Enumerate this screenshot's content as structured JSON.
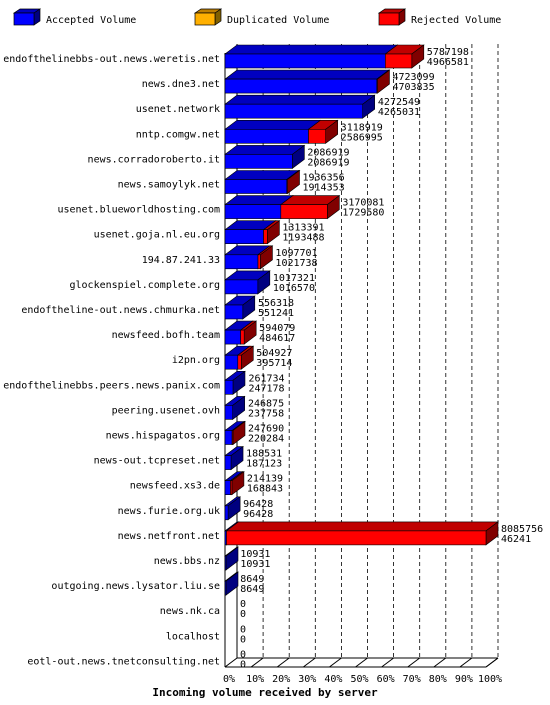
{
  "chart_data": {
    "type": "bar",
    "orientation": "horizontal",
    "stacked": true,
    "xlabel": "Incoming volume received by server",
    "x_ticks": [
      "0%",
      "10%",
      "20%",
      "30%",
      "40%",
      "50%",
      "60%",
      "70%",
      "80%",
      "90%",
      "100%"
    ],
    "xlim": [
      0,
      8085756
    ],
    "grid": true,
    "legend_position": "top",
    "legend": [
      {
        "name": "Accepted Volume",
        "color": "#0000ff"
      },
      {
        "name": "Duplicated Volume",
        "color": "#ffb000"
      },
      {
        "name": "Rejected Volume",
        "color": "#ff0000"
      }
    ],
    "categories": [
      "endofthelinebbs-out.news.weretis.net",
      "news.dne3.net",
      "usenet.network",
      "nntp.comgw.net",
      "news.corradoroberto.it",
      "news.samoylyk.net",
      "usenet.blueworldhosting.com",
      "usenet.goja.nl.eu.org",
      "194.87.241.33",
      "glockenspiel.complete.org",
      "endoftheline-out.news.chmurka.net",
      "newsfeed.bofh.team",
      "i2pn.org",
      "endofthelinebbs.peers.news.panix.com",
      "peering.usenet.ovh",
      "news.hispagatos.org",
      "news-out.tcpreset.net",
      "newsfeed.xs3.de",
      "news.furie.org.uk",
      "news.netfront.net",
      "news.bbs.nz",
      "outgoing.news.lysator.liu.se",
      "news.nk.ca",
      "localhost",
      "eotl-out.news.tnetconsulting.net"
    ],
    "total_values": [
      5787198,
      4723099,
      4272549,
      3118919,
      2086919,
      1936356,
      3170081,
      1313391,
      1097701,
      1017321,
      556318,
      594079,
      504927,
      261734,
      246875,
      247690,
      188531,
      214139,
      96428,
      8085756,
      10931,
      8649,
      0,
      0,
      0
    ],
    "accepted_values": [
      4966581,
      4703835,
      4265031,
      2586995,
      2086919,
      1914353,
      1729580,
      1193488,
      1021738,
      1016570,
      551241,
      484617,
      395714,
      247178,
      237758,
      220284,
      187123,
      168843,
      96428,
      46241,
      10931,
      8649,
      0,
      0,
      0
    ],
    "total_labels": [
      "5787198",
      "4723099",
      "4272549",
      "3118919",
      "2086919",
      "1936356",
      "3170081",
      "1313391",
      "1097701",
      "1017321",
      "556318",
      "594079",
      "504927",
      "261734",
      "246875",
      "247690",
      "188531",
      "214139",
      "96428",
      "8085756",
      "10931",
      "8649",
      "0",
      "0",
      "0"
    ],
    "accepted_labels": [
      "4966581",
      "4703835",
      "4265031",
      "2586995",
      "2086919",
      "1914353",
      "1729580",
      "1193488",
      "1021738",
      "1016570",
      "551241",
      "484617",
      "395714",
      "247178",
      "237758",
      "220284",
      "187123",
      "168843",
      "96428",
      "46241",
      "10931",
      "8649",
      "0",
      "0",
      "0"
    ],
    "colors": {
      "accepted_front": "#0000ff",
      "accepted_top": "#0000c0",
      "accepted_side": "#000080",
      "rejected_front": "#ff0000",
      "rejected_top": "#c00000",
      "rejected_side": "#800000",
      "duplicated_front": "#ffb000",
      "grid": "#000000"
    }
  }
}
